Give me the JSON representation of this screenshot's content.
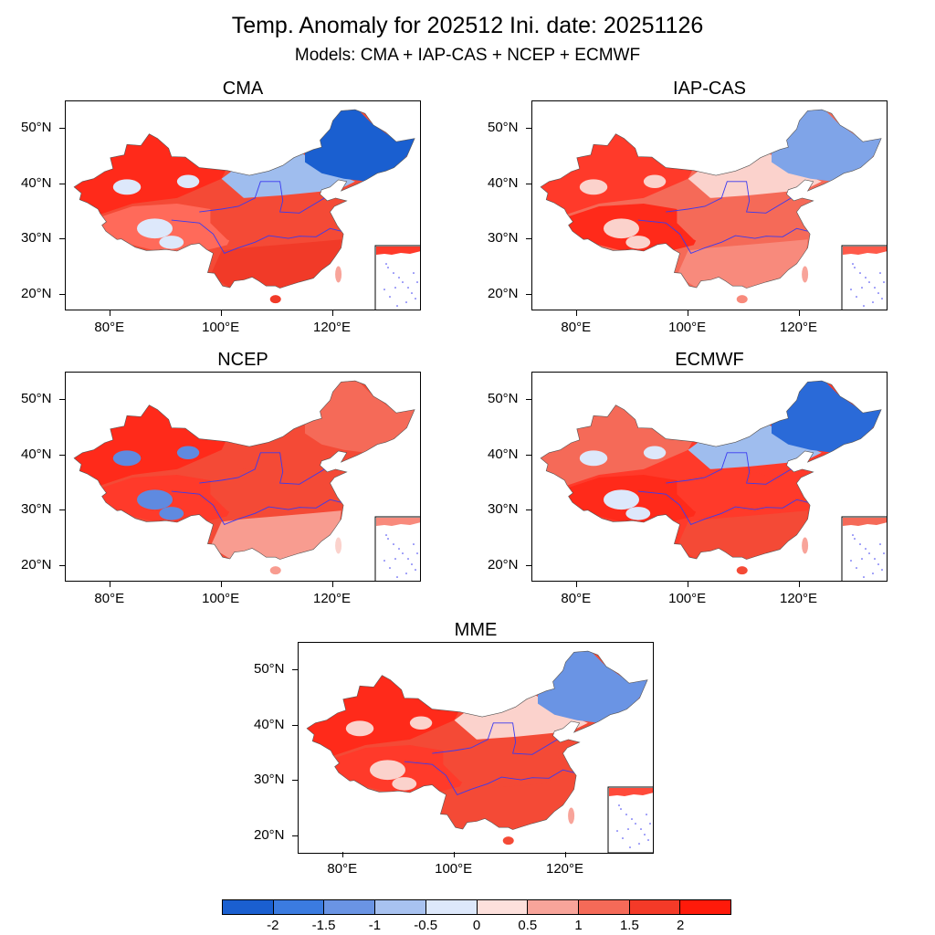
{
  "title": "Temp. Anomaly for 202512 Ini. date: 20251126",
  "subtitle": "Models: CMA + IAP-CAS + NCEP + ECMWF",
  "axes": {
    "lat_labels": [
      "50°N",
      "40°N",
      "30°N",
      "20°N"
    ],
    "lon_labels": [
      "80°E",
      "100°E",
      "120°E"
    ]
  },
  "panels": [
    {
      "id": "cma",
      "title": "CMA",
      "northeast": "#1a5fd0",
      "north": "#9fbdee",
      "west": "#ff2a1a",
      "south": "#f13a28",
      "tibet": "#ff6a5a",
      "center": "#f44a36",
      "spots": "#dde8fb",
      "inset": "#ff3a2a"
    },
    {
      "id": "iap-cas",
      "title": "IAP-CAS",
      "northeast": "#7fa4e8",
      "north": "#fbd2cc",
      "west": "#ff3a2a",
      "south": "#f88a7c",
      "tibet": "#ff2a1a",
      "center": "#f56a58",
      "spots": "#fbd2cc",
      "inset": "#ff5a4a"
    },
    {
      "id": "ncep",
      "title": "NCEP",
      "northeast": "#f56a58",
      "north": "#f44a36",
      "west": "#ff2a1a",
      "south": "#f89c90",
      "tibet": "#ff3a2a",
      "center": "#f44a36",
      "spots": "#5f8ae0",
      "inset": "#f88a7c"
    },
    {
      "id": "ecmwf",
      "title": "ECMWF",
      "northeast": "#2a6ad8",
      "north": "#9fbdee",
      "west": "#f56a58",
      "south": "#f44a36",
      "tibet": "#ff2a1a",
      "center": "#ff3a2a",
      "spots": "#dde8fb",
      "inset": "#f56a58"
    },
    {
      "id": "mme",
      "title": "MME",
      "northeast": "#6a94e4",
      "north": "#fbd2cc",
      "west": "#ff2a1a",
      "south": "#f44a36",
      "tibet": "#ff3a2a",
      "center": "#f44a36",
      "spots": "#fbd2cc",
      "inset": "#ff4a3a"
    }
  ],
  "colorbar": {
    "colors": [
      "#1a5fd0",
      "#3b7be0",
      "#6a94e4",
      "#a8c2f0",
      "#dde8fb",
      "#fde0dc",
      "#f8a49a",
      "#f56a58",
      "#f43a28",
      "#ff1a0a"
    ],
    "labels": [
      "-2",
      "-1.5",
      "-1",
      "-0.5",
      "0",
      "0.5",
      "1",
      "1.5",
      "2"
    ]
  }
}
